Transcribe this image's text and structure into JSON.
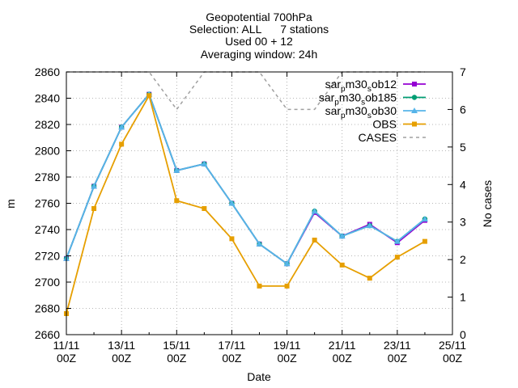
{
  "chart_data": {
    "type": "line",
    "title_lines": [
      "Geopotential 700hPa",
      "Selection: ALL      7 stations",
      "Used 00 + 12",
      "Averaging window: 24h"
    ],
    "xlabel": "Date",
    "ylabel": "m",
    "y2label": "No cases",
    "x_tick_labels": [
      {
        "date": "11/11",
        "hour": "00Z"
      },
      {
        "date": "13/11",
        "hour": "00Z"
      },
      {
        "date": "15/11",
        "hour": "00Z"
      },
      {
        "date": "17/11",
        "hour": "00Z"
      },
      {
        "date": "19/11",
        "hour": "00Z"
      },
      {
        "date": "21/11",
        "hour": "00Z"
      },
      {
        "date": "23/11",
        "hour": "00Z"
      },
      {
        "date": "25/11",
        "hour": "00Z"
      }
    ],
    "xlim": [
      "11/11",
      "25/11"
    ],
    "ylim": [
      2660,
      2860
    ],
    "y_ticks": [
      2660,
      2680,
      2700,
      2720,
      2740,
      2760,
      2780,
      2800,
      2820,
      2840,
      2860
    ],
    "y2lim": [
      0,
      7
    ],
    "y2_ticks": [
      0,
      1,
      2,
      3,
      4,
      5,
      6,
      7
    ],
    "grid": true,
    "legend_position": "top-right",
    "x": [
      "11/11",
      "12/11",
      "13/11",
      "14/11",
      "15/11",
      "16/11",
      "17/11",
      "18/11",
      "19/11",
      "20/11",
      "21/11",
      "22/11",
      "23/11",
      "24/11"
    ],
    "series": [
      {
        "name": "sar_pm30_sob12",
        "legend_main": "sar",
        "legend_sub": "p",
        "legend_mid": "m30",
        "legend_sub2": "s",
        "legend_tail": "ob12",
        "color": "#9400d3",
        "marker": "filled-square",
        "axis": "y1",
        "values": [
          2718,
          2773,
          2818,
          2843,
          2785,
          2790,
          2760,
          2729,
          2714,
          2753,
          2735,
          2744,
          2730,
          2747
        ]
      },
      {
        "name": "sar_pm30_sob185",
        "legend_main": "sar",
        "legend_sub": "p",
        "legend_mid": "m30",
        "legend_sub2": "s",
        "legend_tail": "ob185",
        "color": "#009e73",
        "marker": "filled-circle",
        "axis": "y1",
        "values": [
          2718,
          2773,
          2818,
          2843,
          2785,
          2790,
          2760,
          2729,
          2714,
          2754,
          2735,
          2743,
          2731,
          2748
        ]
      },
      {
        "name": "sar_pm30_sob30",
        "legend_main": "sar",
        "legend_sub": "p",
        "legend_mid": "m30",
        "legend_sub2": "s",
        "legend_tail": "ob30",
        "color": "#56b4e9",
        "marker": "filled-triangle",
        "axis": "y1",
        "values": [
          2718,
          2773,
          2818,
          2843,
          2785,
          2790,
          2760,
          2729,
          2714,
          2754,
          2735,
          2743,
          2731,
          2748
        ]
      },
      {
        "name": "OBS",
        "legend_main": "OBS",
        "color": "#e69f00",
        "marker": "filled-square",
        "axis": "y1",
        "values": [
          2676,
          2756,
          2805,
          2842,
          2762,
          2756,
          2733,
          2697,
          2697,
          2732,
          2713,
          2703,
          2719,
          2731
        ]
      },
      {
        "name": "CASES",
        "legend_main": "CASES",
        "color": "#a0a0a0",
        "marker": "none",
        "axis": "y2",
        "dashed": true,
        "values": [
          7,
          7,
          7,
          7,
          6,
          7,
          7,
          7,
          6,
          6,
          7,
          7,
          7,
          7
        ]
      }
    ]
  }
}
